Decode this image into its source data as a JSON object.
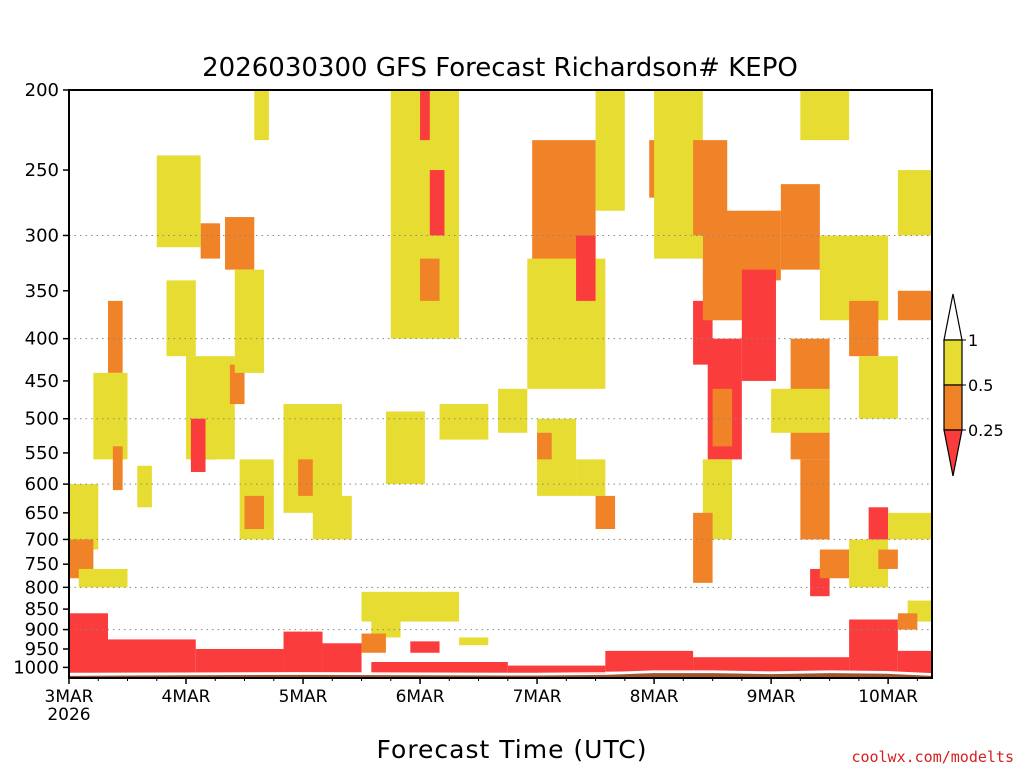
{
  "chart_data": {
    "type": "heatmap",
    "title": "2026030300 GFS Forecast Richardson# KEPO",
    "xlabel": "Forecast Time (UTC)",
    "ylabel": "",
    "credit": "coolwx.com/modelts",
    "y_scale": "log-pressure",
    "y_range_hpa": [
      1030,
      200
    ],
    "x_range_hours": [
      0,
      177
    ],
    "y_ticks": [
      {
        "value": 200,
        "label": "200"
      },
      {
        "value": 250,
        "label": "250"
      },
      {
        "value": 300,
        "label": "300"
      },
      {
        "value": 350,
        "label": "350"
      },
      {
        "value": 400,
        "label": "400"
      },
      {
        "value": 450,
        "label": "450"
      },
      {
        "value": 500,
        "label": "500"
      },
      {
        "value": 550,
        "label": "550"
      },
      {
        "value": 600,
        "label": "600"
      },
      {
        "value": 650,
        "label": "650"
      },
      {
        "value": 700,
        "label": "700"
      },
      {
        "value": 750,
        "label": "750"
      },
      {
        "value": 800,
        "label": "800"
      },
      {
        "value": 850,
        "label": "850"
      },
      {
        "value": 900,
        "label": "900"
      },
      {
        "value": 950,
        "label": "950"
      },
      {
        "value": 1000,
        "label": "1000"
      }
    ],
    "dotted_gridlines_hpa": [
      300,
      400,
      500,
      600,
      700,
      800,
      900
    ],
    "x_ticks": [
      {
        "hour": 0,
        "label": "3MAR",
        "sublabel": "2026"
      },
      {
        "hour": 24,
        "label": "4MAR"
      },
      {
        "hour": 48,
        "label": "5MAR"
      },
      {
        "hour": 72,
        "label": "6MAR"
      },
      {
        "hour": 96,
        "label": "7MAR"
      },
      {
        "hour": 120,
        "label": "8MAR"
      },
      {
        "hour": 144,
        "label": "9MAR"
      },
      {
        "hour": 168,
        "label": "10MAR"
      }
    ],
    "legend": {
      "top_label": "1",
      "bins": [
        {
          "range": "0.5-1",
          "label": "0.5",
          "color": "#e6dc32"
        },
        {
          "range": "0.25-0.5",
          "label": "0.25",
          "color": "#f08228"
        },
        {
          "range": "<0.25",
          "color": "#fa3c3c"
        }
      ],
      "above_color": "#ffffff"
    },
    "colors": {
      "yellow": "#e6dc32",
      "orange": "#f08228",
      "red": "#fa3c3c",
      "ground": "#a0522d"
    },
    "surface_pressure_hpa": [
      [
        0,
        1024
      ],
      [
        24,
        1022
      ],
      [
        48,
        1021
      ],
      [
        72,
        1022
      ],
      [
        96,
        1023
      ],
      [
        110,
        1021
      ],
      [
        120,
        1016
      ],
      [
        132,
        1016
      ],
      [
        144,
        1019
      ],
      [
        156,
        1016
      ],
      [
        168,
        1018
      ],
      [
        177,
        1024
      ]
    ],
    "regions": [
      {
        "v": "red",
        "x": [
          0,
          8
        ],
        "p": [
          860,
          1015
        ]
      },
      {
        "v": "red",
        "x": [
          8,
          26
        ],
        "p": [
          925,
          1015
        ]
      },
      {
        "v": "red",
        "x": [
          26,
          44
        ],
        "p": [
          950,
          1016
        ]
      },
      {
        "v": "red",
        "x": [
          44,
          52
        ],
        "p": [
          905,
          1016
        ]
      },
      {
        "v": "red",
        "x": [
          52,
          60
        ],
        "p": [
          935,
          1016
        ]
      },
      {
        "v": "red",
        "x": [
          62,
          90
        ],
        "p": [
          985,
          1018
        ]
      },
      {
        "v": "red",
        "x": [
          90,
          110
        ],
        "p": [
          995,
          1018
        ]
      },
      {
        "v": "red",
        "x": [
          110,
          128
        ],
        "p": [
          955,
          1012
        ]
      },
      {
        "v": "red",
        "x": [
          128,
          160
        ],
        "p": [
          972,
          1012
        ]
      },
      {
        "v": "red",
        "x": [
          160,
          170
        ],
        "p": [
          875,
          1012
        ]
      },
      {
        "v": "red",
        "x": [
          170,
          177
        ],
        "p": [
          955,
          1016
        ]
      },
      {
        "v": "yellow",
        "x": [
          0,
          6
        ],
        "p": [
          600,
          720
        ]
      },
      {
        "v": "orange",
        "x": [
          0,
          5
        ],
        "p": [
          700,
          780
        ]
      },
      {
        "v": "yellow",
        "x": [
          2,
          12
        ],
        "p": [
          760,
          800
        ]
      },
      {
        "v": "orange",
        "x": [
          8,
          11
        ],
        "p": [
          360,
          440
        ]
      },
      {
        "v": "yellow",
        "x": [
          5,
          12
        ],
        "p": [
          440,
          560
        ]
      },
      {
        "v": "orange",
        "x": [
          9,
          11
        ],
        "p": [
          540,
          610
        ]
      },
      {
        "v": "yellow",
        "x": [
          14,
          17
        ],
        "p": [
          570,
          640
        ]
      },
      {
        "v": "red",
        "x": [
          28,
          30
        ],
        "p": [
          510,
          560
        ]
      },
      {
        "v": "orange",
        "x": [
          27,
          31
        ],
        "p": [
          290,
          320
        ]
      },
      {
        "v": "yellow",
        "x": [
          18,
          27
        ],
        "p": [
          240,
          310
        ]
      },
      {
        "v": "yellow",
        "x": [
          20,
          26
        ],
        "p": [
          340,
          420
        ]
      },
      {
        "v": "yellow",
        "x": [
          24,
          34
        ],
        "p": [
          420,
          560
        ]
      },
      {
        "v": "red",
        "x": [
          25,
          28
        ],
        "p": [
          500,
          580
        ]
      },
      {
        "v": "orange",
        "x": [
          33,
          36
        ],
        "p": [
          430,
          480
        ]
      },
      {
        "v": "yellow",
        "x": [
          38,
          41
        ],
        "p": [
          200,
          230
        ]
      },
      {
        "v": "orange",
        "x": [
          32,
          38
        ],
        "p": [
          285,
          330
        ]
      },
      {
        "v": "yellow",
        "x": [
          34,
          40
        ],
        "p": [
          330,
          440
        ]
      },
      {
        "v": "yellow",
        "x": [
          35,
          42
        ],
        "p": [
          560,
          700
        ]
      },
      {
        "v": "orange",
        "x": [
          36,
          40
        ],
        "p": [
          620,
          680
        ]
      },
      {
        "v": "yellow",
        "x": [
          44,
          56
        ],
        "p": [
          480,
          650
        ]
      },
      {
        "v": "orange",
        "x": [
          47,
          50
        ],
        "p": [
          560,
          620
        ]
      },
      {
        "v": "yellow",
        "x": [
          50,
          58
        ],
        "p": [
          620,
          700
        ]
      },
      {
        "v": "yellow",
        "x": [
          60,
          80
        ],
        "p": [
          810,
          880
        ]
      },
      {
        "v": "yellow",
        "x": [
          62,
          68
        ],
        "p": [
          860,
          920
        ]
      },
      {
        "v": "orange",
        "x": [
          60,
          65
        ],
        "p": [
          910,
          960
        ]
      },
      {
        "v": "red",
        "x": [
          70,
          76
        ],
        "p": [
          930,
          960
        ]
      },
      {
        "v": "yellow",
        "x": [
          80,
          86
        ],
        "p": [
          920,
          940
        ]
      },
      {
        "v": "yellow",
        "x": [
          65,
          73
        ],
        "p": [
          490,
          600
        ]
      },
      {
        "v": "yellow",
        "x": [
          76,
          86
        ],
        "p": [
          480,
          530
        ]
      },
      {
        "v": "red",
        "x": [
          70,
          78
        ],
        "p": [
          250,
          300
        ]
      },
      {
        "v": "orange",
        "x": [
          68,
          78
        ],
        "p": [
          300,
          340
        ]
      },
      {
        "v": "yellow",
        "x": [
          66,
          80
        ],
        "p": [
          200,
          400
        ]
      },
      {
        "v": "red",
        "x": [
          72,
          74
        ],
        "p": [
          200,
          230
        ]
      },
      {
        "v": "red",
        "x": [
          74,
          77
        ],
        "p": [
          250,
          300
        ]
      },
      {
        "v": "orange",
        "x": [
          72,
          76
        ],
        "p": [
          320,
          360
        ]
      },
      {
        "v": "yellow",
        "x": [
          88,
          94
        ],
        "p": [
          460,
          520
        ]
      },
      {
        "v": "yellow",
        "x": [
          96,
          104
        ],
        "p": [
          500,
          620
        ]
      },
      {
        "v": "orange",
        "x": [
          96,
          99
        ],
        "p": [
          520,
          560
        ]
      },
      {
        "v": "red",
        "x": [
          98,
          106
        ],
        "p": [
          250,
          400
        ]
      },
      {
        "v": "orange",
        "x": [
          95,
          108
        ],
        "p": [
          230,
          330
        ]
      },
      {
        "v": "yellow",
        "x": [
          94,
          110
        ],
        "p": [
          320,
          460
        ]
      },
      {
        "v": "red",
        "x": [
          104,
          108
        ],
        "p": [
          300,
          360
        ]
      },
      {
        "v": "yellow",
        "x": [
          104,
          110
        ],
        "p": [
          560,
          620
        ]
      },
      {
        "v": "orange",
        "x": [
          108,
          112
        ],
        "p": [
          620,
          680
        ]
      },
      {
        "v": "yellow",
        "x": [
          108,
          114
        ],
        "p": [
          200,
          280
        ]
      },
      {
        "v": "orange",
        "x": [
          119,
          128
        ],
        "p": [
          230,
          270
        ]
      },
      {
        "v": "red",
        "x": [
          121,
          125
        ],
        "p": [
          250,
          290
        ]
      },
      {
        "v": "yellow",
        "x": [
          120,
          130
        ],
        "p": [
          200,
          320
        ]
      },
      {
        "v": "orange",
        "x": [
          128,
          135
        ],
        "p": [
          230,
          300
        ]
      },
      {
        "v": "red",
        "x": [
          128,
          132
        ],
        "p": [
          360,
          430
        ]
      },
      {
        "v": "orange",
        "x": [
          130,
          140
        ],
        "p": [
          300,
          380
        ]
      },
      {
        "v": "orange",
        "x": [
          134,
          146
        ],
        "p": [
          280,
          340
        ]
      },
      {
        "v": "red",
        "x": [
          138,
          145
        ],
        "p": [
          330,
          450
        ]
      },
      {
        "v": "red",
        "x": [
          131,
          138
        ],
        "p": [
          400,
          560
        ]
      },
      {
        "v": "orange",
        "x": [
          132,
          136
        ],
        "p": [
          460,
          540
        ]
      },
      {
        "v": "yellow",
        "x": [
          130,
          136
        ],
        "p": [
          560,
          700
        ]
      },
      {
        "v": "orange",
        "x": [
          128,
          132
        ],
        "p": [
          650,
          790
        ]
      },
      {
        "v": "orange",
        "x": [
          146,
          154
        ],
        "p": [
          260,
          330
        ]
      },
      {
        "v": "yellow",
        "x": [
          150,
          160
        ],
        "p": [
          200,
          230
        ]
      },
      {
        "v": "orange",
        "x": [
          148,
          156
        ],
        "p": [
          400,
          560
        ]
      },
      {
        "v": "yellow",
        "x": [
          144,
          156
        ],
        "p": [
          460,
          520
        ]
      },
      {
        "v": "orange",
        "x": [
          150,
          156
        ],
        "p": [
          560,
          700
        ]
      },
      {
        "v": "yellow",
        "x": [
          154,
          162
        ],
        "p": [
          300,
          380
        ]
      },
      {
        "v": "red",
        "x": [
          152,
          156
        ],
        "p": [
          760,
          820
        ]
      },
      {
        "v": "orange",
        "x": [
          154,
          160
        ],
        "p": [
          720,
          780
        ]
      },
      {
        "v": "yellow",
        "x": [
          160,
          168
        ],
        "p": [
          300,
          380
        ]
      },
      {
        "v": "orange",
        "x": [
          160,
          166
        ],
        "p": [
          360,
          420
        ]
      },
      {
        "v": "yellow",
        "x": [
          162,
          170
        ],
        "p": [
          420,
          500
        ]
      },
      {
        "v": "red",
        "x": [
          164,
          168
        ],
        "p": [
          640,
          700
        ]
      },
      {
        "v": "yellow",
        "x": [
          160,
          168
        ],
        "p": [
          700,
          800
        ]
      },
      {
        "v": "orange",
        "x": [
          166,
          170
        ],
        "p": [
          720,
          760
        ]
      },
      {
        "v": "orange",
        "x": [
          170,
          177
        ],
        "p": [
          350,
          380
        ]
      },
      {
        "v": "yellow",
        "x": [
          170,
          177
        ],
        "p": [
          250,
          300
        ]
      },
      {
        "v": "yellow",
        "x": [
          168,
          177
        ],
        "p": [
          650,
          700
        ]
      },
      {
        "v": "yellow",
        "x": [
          172,
          177
        ],
        "p": [
          830,
          880
        ]
      },
      {
        "v": "orange",
        "x": [
          170,
          174
        ],
        "p": [
          860,
          900
        ]
      }
    ]
  }
}
